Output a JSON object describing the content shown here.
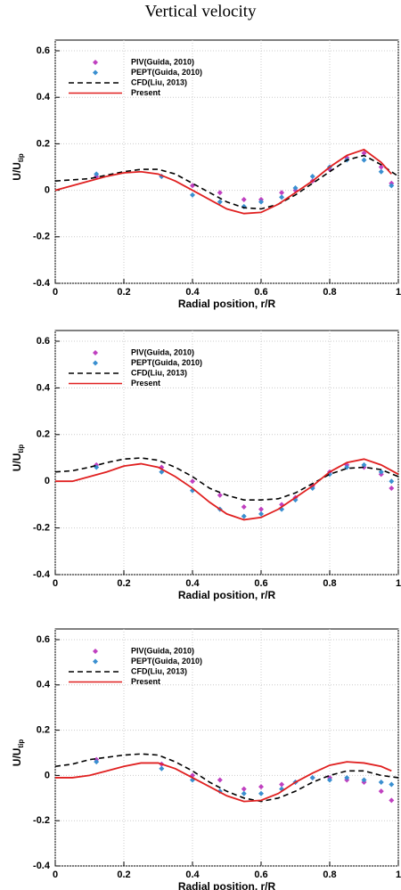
{
  "title": "Vertical velocity",
  "chart_data": [
    {
      "type": "line",
      "xlabel": "Radial position, r/R",
      "ylabel": "U/U",
      "ylabel_sub": "tip",
      "xlim": [
        0,
        1
      ],
      "xticks": [
        0,
        0.2,
        0.4,
        0.6,
        0.8,
        1
      ],
      "ylim": [
        -0.4,
        0.6
      ],
      "yticks": [
        -0.4,
        -0.2,
        0,
        0.2,
        0.4,
        0.6
      ],
      "grid": true,
      "legend": "upper left",
      "series": [
        {
          "name": "PIV(Guida, 2010)",
          "color": "#c040c0",
          "style": "marker",
          "x": [
            0.12,
            0.31,
            0.4,
            0.48,
            0.55,
            0.6,
            0.66,
            0.7,
            0.75,
            0.8,
            0.85,
            0.9,
            0.95,
            0.98
          ],
          "values": [
            0.06,
            0.06,
            0.02,
            -0.01,
            -0.04,
            -0.04,
            -0.01,
            0.0,
            0.04,
            0.09,
            0.14,
            0.16,
            0.1,
            0.03
          ]
        },
        {
          "name": "PEPT(Guida, 2010)",
          "color": "#3a8fd0",
          "style": "marker",
          "x": [
            0.12,
            0.31,
            0.4,
            0.48,
            0.55,
            0.6,
            0.66,
            0.7,
            0.75,
            0.8,
            0.85,
            0.9,
            0.95,
            0.98
          ],
          "values": [
            0.07,
            0.06,
            -0.02,
            -0.05,
            -0.07,
            -0.05,
            -0.03,
            0.01,
            0.06,
            0.1,
            0.13,
            0.13,
            0.08,
            0.02
          ]
        },
        {
          "name": "CFD(Liu, 2013)",
          "color": "#000000",
          "style": "dashed",
          "x": [
            0,
            0.05,
            0.1,
            0.15,
            0.2,
            0.25,
            0.3,
            0.35,
            0.4,
            0.45,
            0.5,
            0.55,
            0.6,
            0.65,
            0.7,
            0.75,
            0.8,
            0.85,
            0.9,
            0.95,
            1
          ],
          "values": [
            0.04,
            0.045,
            0.05,
            0.065,
            0.08,
            0.09,
            0.09,
            0.07,
            0.03,
            -0.01,
            -0.05,
            -0.075,
            -0.08,
            -0.06,
            -0.02,
            0.03,
            0.08,
            0.13,
            0.15,
            0.11,
            0.06
          ]
        },
        {
          "name": "Present",
          "color": "#e02020",
          "style": "solid",
          "x": [
            0,
            0.05,
            0.1,
            0.15,
            0.2,
            0.25,
            0.3,
            0.35,
            0.4,
            0.45,
            0.5,
            0.55,
            0.6,
            0.65,
            0.7,
            0.75,
            0.8,
            0.85,
            0.9,
            0.95,
            0.98
          ],
          "values": [
            0,
            0.02,
            0.04,
            0.06,
            0.075,
            0.08,
            0.07,
            0.04,
            0.0,
            -0.04,
            -0.08,
            -0.1,
            -0.095,
            -0.06,
            -0.01,
            0.04,
            0.1,
            0.15,
            0.175,
            0.12,
            0.07
          ]
        }
      ]
    },
    {
      "type": "line",
      "xlabel": "Radial position, r/R",
      "ylabel": "U/U",
      "ylabel_sub": "tip",
      "xlim": [
        0,
        1
      ],
      "xticks": [
        0,
        0.2,
        0.4,
        0.6,
        0.8,
        1
      ],
      "ylim": [
        -0.4,
        0.6
      ],
      "yticks": [
        -0.4,
        -0.2,
        0,
        0.2,
        0.4,
        0.6
      ],
      "grid": true,
      "legend": "upper left",
      "series": [
        {
          "name": "PIV(Guida, 2010)",
          "color": "#c040c0",
          "style": "marker",
          "x": [
            0.12,
            0.31,
            0.4,
            0.48,
            0.55,
            0.6,
            0.66,
            0.7,
            0.75,
            0.8,
            0.85,
            0.9,
            0.95,
            0.98
          ],
          "values": [
            0.07,
            0.06,
            0.0,
            -0.06,
            -0.11,
            -0.12,
            -0.1,
            -0.07,
            -0.02,
            0.04,
            0.07,
            0.06,
            0.03,
            -0.03
          ]
        },
        {
          "name": "PEPT(Guida, 2010)",
          "color": "#3a8fd0",
          "style": "marker",
          "x": [
            0.12,
            0.31,
            0.4,
            0.48,
            0.55,
            0.6,
            0.66,
            0.7,
            0.75,
            0.8,
            0.85,
            0.9,
            0.95,
            0.98
          ],
          "values": [
            0.06,
            0.04,
            -0.04,
            -0.12,
            -0.15,
            -0.14,
            -0.12,
            -0.08,
            -0.03,
            0.03,
            0.06,
            0.07,
            0.04,
            0.0
          ]
        },
        {
          "name": "CFD(Liu, 2013)",
          "color": "#000000",
          "style": "dashed",
          "x": [
            0,
            0.05,
            0.1,
            0.15,
            0.2,
            0.25,
            0.3,
            0.35,
            0.4,
            0.45,
            0.5,
            0.55,
            0.6,
            0.65,
            0.7,
            0.75,
            0.8,
            0.85,
            0.9,
            0.95,
            1
          ],
          "values": [
            0.04,
            0.045,
            0.06,
            0.08,
            0.095,
            0.1,
            0.09,
            0.06,
            0.02,
            -0.03,
            -0.06,
            -0.08,
            -0.08,
            -0.075,
            -0.05,
            -0.01,
            0.03,
            0.055,
            0.06,
            0.05,
            0.02
          ]
        },
        {
          "name": "Present",
          "color": "#e02020",
          "style": "solid",
          "x": [
            0,
            0.05,
            0.1,
            0.15,
            0.2,
            0.25,
            0.3,
            0.35,
            0.4,
            0.45,
            0.5,
            0.55,
            0.6,
            0.65,
            0.7,
            0.75,
            0.8,
            0.85,
            0.9,
            0.95,
            1
          ],
          "values": [
            0,
            0,
            0.02,
            0.04,
            0.065,
            0.075,
            0.06,
            0.02,
            -0.03,
            -0.09,
            -0.14,
            -0.165,
            -0.155,
            -0.12,
            -0.07,
            -0.02,
            0.04,
            0.08,
            0.095,
            0.07,
            0.03
          ]
        }
      ]
    },
    {
      "type": "line",
      "xlabel": "Radial position, r/R",
      "ylabel": "U/U",
      "ylabel_sub": "tip",
      "xlim": [
        0,
        1
      ],
      "xticks": [
        0,
        0.2,
        0.4,
        0.6,
        0.8,
        1
      ],
      "ylim": [
        -0.4,
        0.6
      ],
      "yticks": [
        -0.4,
        -0.2,
        0,
        0.2,
        0.4,
        0.6
      ],
      "grid": true,
      "legend": "upper left",
      "series": [
        {
          "name": "PIV(Guida, 2010)",
          "color": "#c040c0",
          "style": "marker",
          "x": [
            0.12,
            0.31,
            0.4,
            0.48,
            0.55,
            0.6,
            0.66,
            0.7,
            0.75,
            0.8,
            0.85,
            0.9,
            0.95,
            0.98
          ],
          "values": [
            0.07,
            0.05,
            0.0,
            -0.02,
            -0.06,
            -0.05,
            -0.04,
            -0.03,
            -0.01,
            -0.01,
            -0.02,
            -0.03,
            -0.07,
            -0.11
          ]
        },
        {
          "name": "PEPT(Guida, 2010)",
          "color": "#3a8fd0",
          "style": "marker",
          "x": [
            0.12,
            0.31,
            0.4,
            0.48,
            0.55,
            0.6,
            0.66,
            0.7,
            0.75,
            0.8,
            0.85,
            0.9,
            0.95,
            0.98
          ],
          "values": [
            0.06,
            0.03,
            -0.02,
            -0.07,
            -0.08,
            -0.08,
            -0.06,
            -0.03,
            -0.01,
            -0.02,
            -0.01,
            -0.02,
            -0.03,
            -0.04
          ]
        },
        {
          "name": "CFD(Liu, 2013)",
          "color": "#000000",
          "style": "dashed",
          "x": [
            0,
            0.05,
            0.1,
            0.15,
            0.2,
            0.25,
            0.3,
            0.35,
            0.4,
            0.45,
            0.5,
            0.55,
            0.6,
            0.65,
            0.7,
            0.75,
            0.8,
            0.85,
            0.9,
            0.95,
            1
          ],
          "values": [
            0.04,
            0.05,
            0.07,
            0.08,
            0.09,
            0.095,
            0.09,
            0.06,
            0.02,
            -0.03,
            -0.07,
            -0.1,
            -0.115,
            -0.1,
            -0.07,
            -0.03,
            0.0,
            0.02,
            0.02,
            0.0,
            -0.01
          ]
        },
        {
          "name": "Present",
          "color": "#e02020",
          "style": "solid",
          "x": [
            0,
            0.05,
            0.1,
            0.15,
            0.2,
            0.25,
            0.3,
            0.35,
            0.4,
            0.45,
            0.5,
            0.55,
            0.6,
            0.65,
            0.7,
            0.75,
            0.8,
            0.85,
            0.9,
            0.95,
            0.98
          ],
          "values": [
            -0.01,
            -0.01,
            0.0,
            0.02,
            0.04,
            0.055,
            0.055,
            0.03,
            -0.01,
            -0.05,
            -0.09,
            -0.115,
            -0.11,
            -0.08,
            -0.03,
            0.01,
            0.045,
            0.06,
            0.055,
            0.04,
            0.02
          ]
        }
      ]
    }
  ]
}
